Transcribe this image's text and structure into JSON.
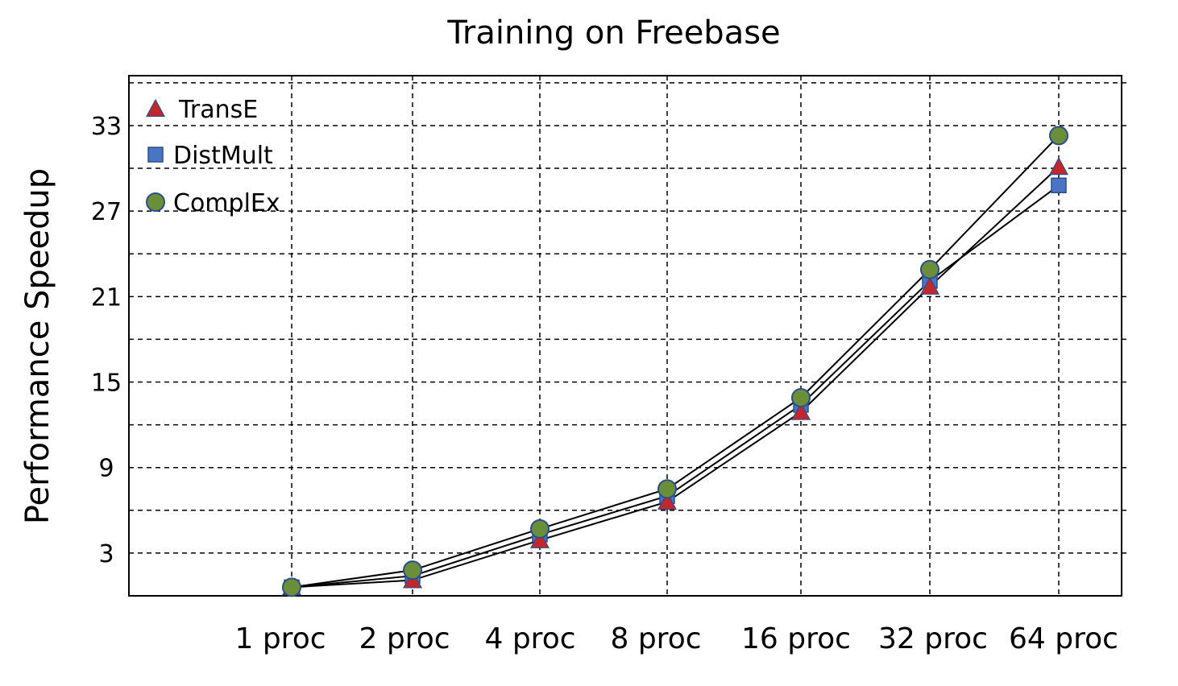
{
  "chart_data": {
    "type": "line",
    "title": "Training on Freebase",
    "xlabel": "",
    "ylabel": "Performance Speedup",
    "categories": [
      "1 proc",
      "2 proc",
      "4 proc",
      "8 proc",
      "16 proc",
      "32 proc",
      "64 proc"
    ],
    "yticks": [
      3,
      9,
      15,
      21,
      27,
      33
    ],
    "ylim": [
      0,
      36.5
    ],
    "grid": true,
    "legend_position": "top-left",
    "series": [
      {
        "name": "TransE",
        "marker": "triangle",
        "color": "#c0282d",
        "stroke": "#2b4e8c",
        "values": [
          0.6,
          1.1,
          3.9,
          6.6,
          12.9,
          21.7,
          30.1
        ]
      },
      {
        "name": "DistMult",
        "marker": "square",
        "color": "#4a74c4",
        "stroke": "#2b4e8c",
        "values": [
          0.6,
          1.4,
          4.3,
          7.0,
          13.4,
          22.1,
          28.8
        ]
      },
      {
        "name": "ComplEx",
        "marker": "circle",
        "color": "#6b8e3a",
        "stroke": "#2b4e8c",
        "values": [
          0.6,
          1.8,
          4.7,
          7.5,
          13.9,
          22.9,
          32.3
        ]
      }
    ]
  }
}
